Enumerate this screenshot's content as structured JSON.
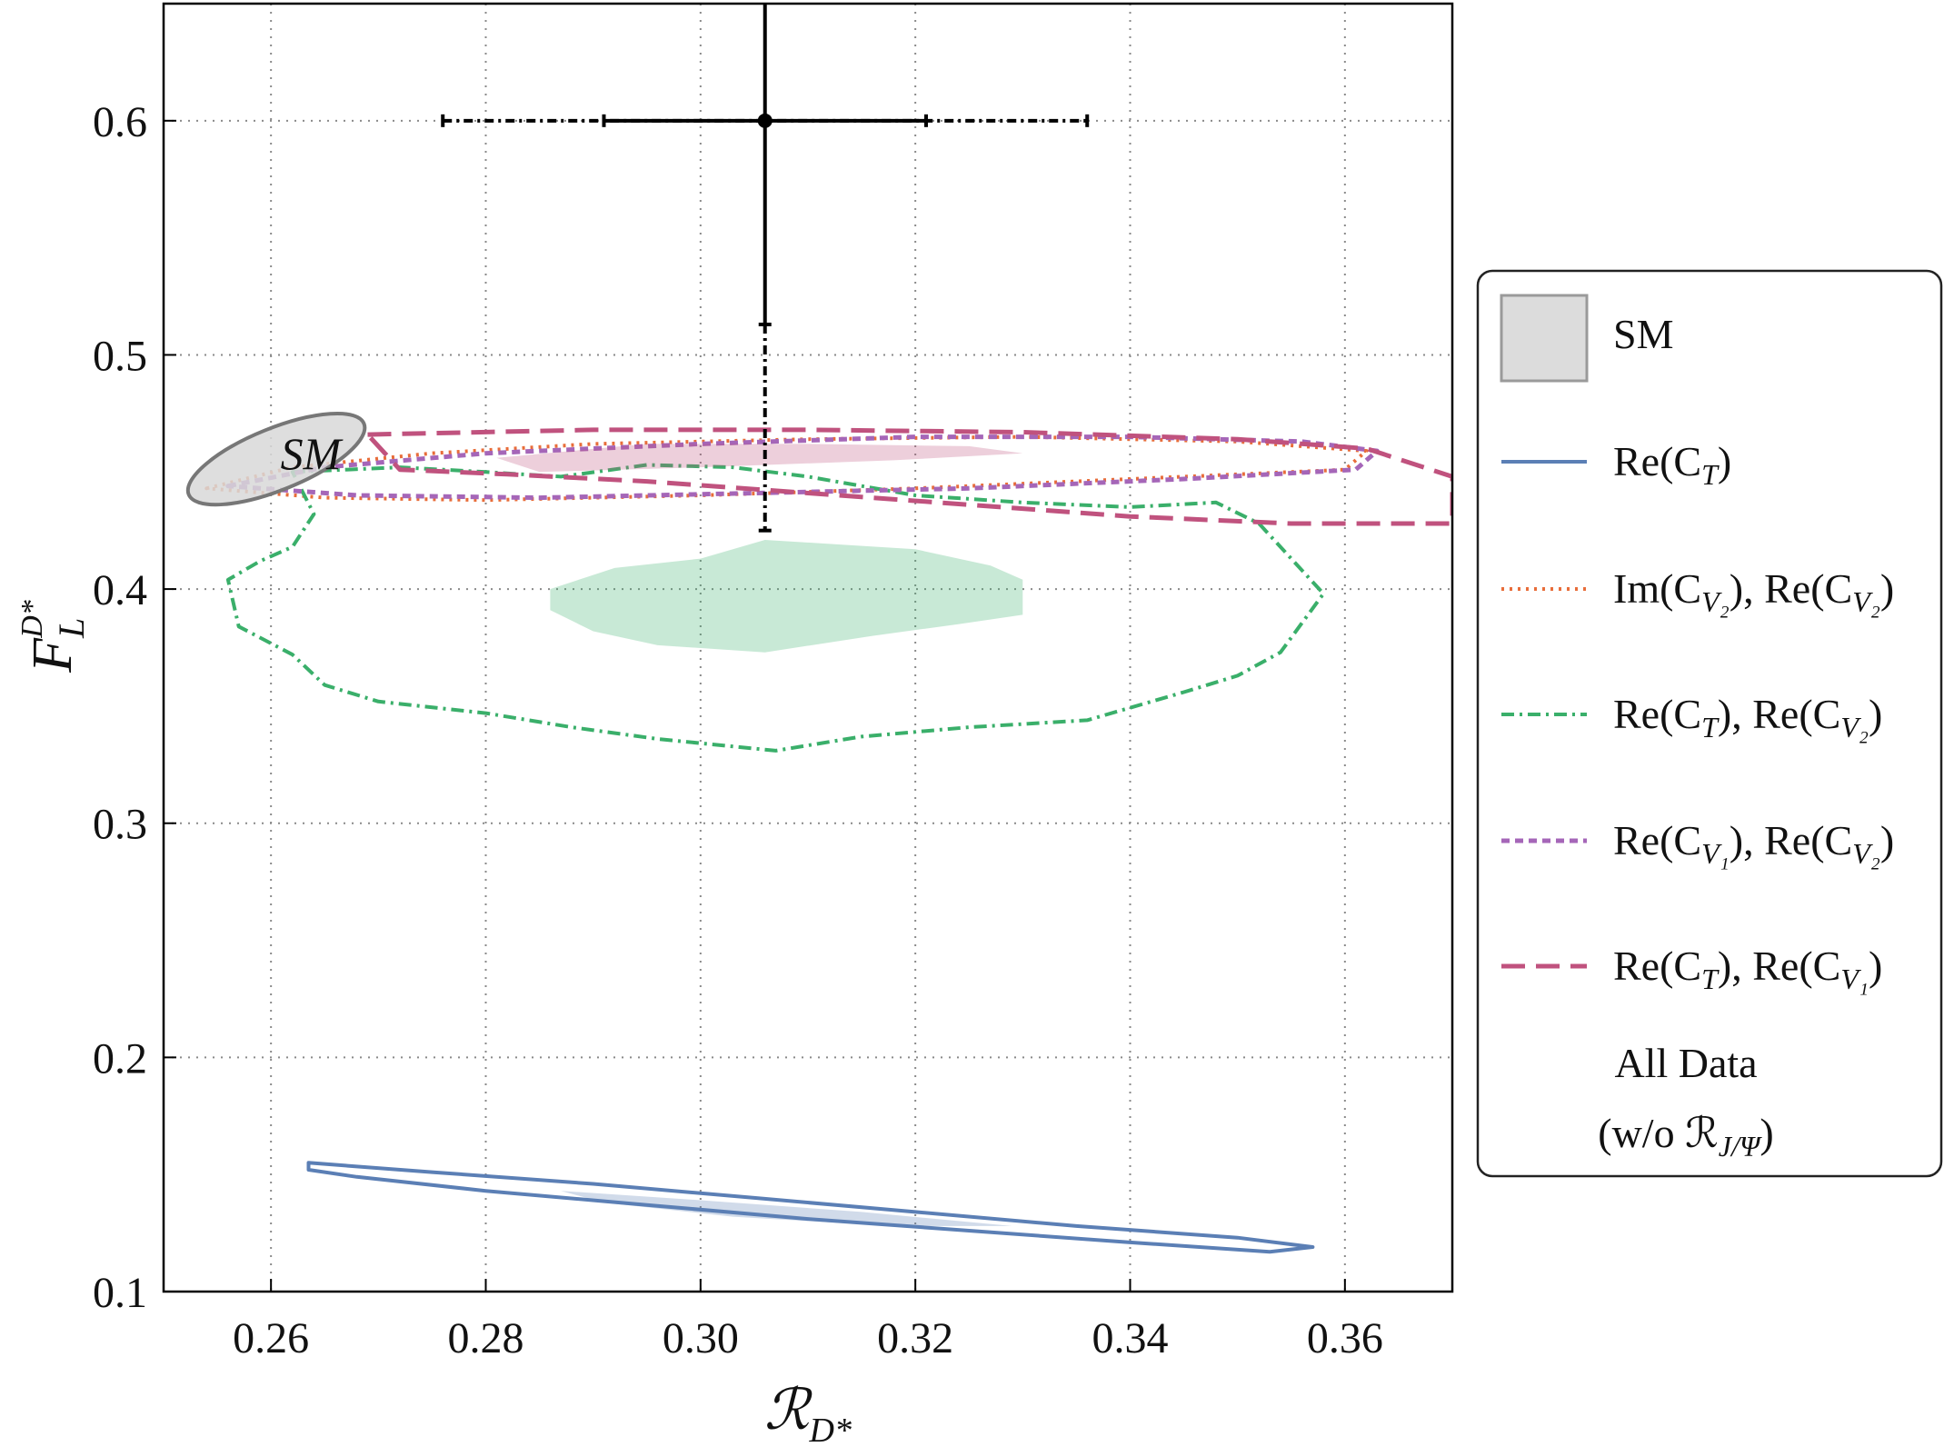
{
  "chart_data": {
    "type": "scatter",
    "xlabel": "ℛ",
    "xlabel_sub": "D*",
    "ylabel": "F",
    "ylabel_sub": "L",
    "ylabel_sup": "D*",
    "xlim": [
      0.25,
      0.37
    ],
    "ylim": [
      0.1,
      0.65
    ],
    "xticks": [
      0.26,
      0.28,
      0.3,
      0.32,
      0.34,
      0.36
    ],
    "xtick_labels": [
      "0.26",
      "0.28",
      "0.30",
      "0.32",
      "0.34",
      "0.36"
    ],
    "yticks": [
      0.1,
      0.2,
      0.3,
      0.4,
      0.5,
      0.6
    ],
    "ytick_labels": [
      "0.1",
      "0.2",
      "0.3",
      "0.4",
      "0.5",
      "0.6"
    ],
    "grid": true,
    "measurement": {
      "x": 0.306,
      "y": 0.6,
      "x_err_inner": [
        0.291,
        0.321
      ],
      "x_err_outer": [
        0.276,
        0.336
      ],
      "y_err_inner_low": 0.513,
      "y_err_outer_low": 0.425,
      "y_err_high": 0.65
    },
    "sm_ellipse": {
      "x": 0.2605,
      "y": 0.4555,
      "rx": 0.0095,
      "ry": 0.0095,
      "label": "SM"
    },
    "regions": [
      {
        "name": "Re(C_T)",
        "color": "#5b7fb5",
        "style": "solid",
        "outline": [
          [
            0.2635,
            0.155
          ],
          [
            0.275,
            0.151
          ],
          [
            0.29,
            0.146
          ],
          [
            0.305,
            0.14
          ],
          [
            0.32,
            0.134
          ],
          [
            0.335,
            0.128
          ],
          [
            0.35,
            0.123
          ],
          [
            0.357,
            0.119
          ],
          [
            0.353,
            0.117
          ],
          [
            0.34,
            0.121
          ],
          [
            0.325,
            0.126
          ],
          [
            0.31,
            0.131
          ],
          [
            0.295,
            0.137
          ],
          [
            0.28,
            0.143
          ],
          [
            0.268,
            0.149
          ],
          [
            0.2635,
            0.152
          ]
        ],
        "fill": [
          [
            0.287,
            0.143
          ],
          [
            0.3,
            0.139
          ],
          [
            0.315,
            0.134
          ],
          [
            0.329,
            0.128
          ],
          [
            0.318,
            0.128
          ],
          [
            0.303,
            0.132
          ],
          [
            0.291,
            0.138
          ]
        ]
      },
      {
        "name": "Im(C_V2), Re(C_V2)",
        "color": "#e86d3a",
        "style": "dotted",
        "outline": [
          [
            0.254,
            0.443
          ],
          [
            0.262,
            0.452
          ],
          [
            0.275,
            0.458
          ],
          [
            0.29,
            0.462
          ],
          [
            0.31,
            0.464
          ],
          [
            0.33,
            0.465
          ],
          [
            0.35,
            0.463
          ],
          [
            0.362,
            0.459
          ],
          [
            0.36,
            0.451
          ],
          [
            0.34,
            0.447
          ],
          [
            0.32,
            0.443
          ],
          [
            0.3,
            0.44
          ],
          [
            0.28,
            0.438
          ],
          [
            0.265,
            0.439
          ]
        ]
      },
      {
        "name": "Re(C_T), Re(C_V2)",
        "color": "#3aaf6a",
        "style": "dashdot",
        "outline": [
          [
            0.262,
            0.45
          ],
          [
            0.272,
            0.452
          ],
          [
            0.28,
            0.45
          ],
          [
            0.287,
            0.448
          ],
          [
            0.295,
            0.453
          ],
          [
            0.303,
            0.452
          ],
          [
            0.31,
            0.448
          ],
          [
            0.32,
            0.44
          ],
          [
            0.33,
            0.437
          ],
          [
            0.34,
            0.435
          ],
          [
            0.348,
            0.437
          ],
          [
            0.352,
            0.428
          ],
          [
            0.358,
            0.398
          ],
          [
            0.354,
            0.373
          ],
          [
            0.35,
            0.363
          ],
          [
            0.345,
            0.356
          ],
          [
            0.336,
            0.344
          ],
          [
            0.325,
            0.341
          ],
          [
            0.315,
            0.337
          ],
          [
            0.307,
            0.331
          ],
          [
            0.296,
            0.336
          ],
          [
            0.288,
            0.341
          ],
          [
            0.28,
            0.347
          ],
          [
            0.27,
            0.352
          ],
          [
            0.265,
            0.359
          ],
          [
            0.262,
            0.372
          ],
          [
            0.257,
            0.384
          ],
          [
            0.256,
            0.404
          ],
          [
            0.259,
            0.412
          ],
          [
            0.262,
            0.418
          ],
          [
            0.264,
            0.432
          ]
        ],
        "fill": [
          [
            0.286,
            0.4
          ],
          [
            0.292,
            0.409
          ],
          [
            0.3,
            0.413
          ],
          [
            0.306,
            0.421
          ],
          [
            0.313,
            0.419
          ],
          [
            0.32,
            0.417
          ],
          [
            0.327,
            0.41
          ],
          [
            0.33,
            0.404
          ],
          [
            0.33,
            0.389
          ],
          [
            0.324,
            0.385
          ],
          [
            0.316,
            0.38
          ],
          [
            0.306,
            0.373
          ],
          [
            0.296,
            0.376
          ],
          [
            0.29,
            0.382
          ],
          [
            0.286,
            0.391
          ]
        ]
      },
      {
        "name": "Re(C_V1), Re(C_V2)",
        "color": "#a566b8",
        "style": "dashed",
        "outline": [
          [
            0.256,
            0.444
          ],
          [
            0.265,
            0.452
          ],
          [
            0.28,
            0.458
          ],
          [
            0.3,
            0.462
          ],
          [
            0.32,
            0.465
          ],
          [
            0.34,
            0.465
          ],
          [
            0.356,
            0.463
          ],
          [
            0.363,
            0.459
          ],
          [
            0.361,
            0.451
          ],
          [
            0.345,
            0.447
          ],
          [
            0.325,
            0.443
          ],
          [
            0.305,
            0.441
          ],
          [
            0.285,
            0.439
          ],
          [
            0.268,
            0.44
          ]
        ]
      },
      {
        "name": "Re(C_T), Re(C_V1)",
        "color": "#c0527e",
        "style": "longdash",
        "outline": [
          [
            0.269,
            0.466
          ],
          [
            0.29,
            0.468
          ],
          [
            0.31,
            0.468
          ],
          [
            0.33,
            0.467
          ],
          [
            0.35,
            0.464
          ],
          [
            0.362,
            0.46
          ],
          [
            0.37,
            0.448
          ],
          [
            0.37,
            0.428
          ],
          [
            0.355,
            0.428
          ],
          [
            0.34,
            0.431
          ],
          [
            0.325,
            0.436
          ],
          [
            0.31,
            0.441
          ],
          [
            0.295,
            0.446
          ],
          [
            0.282,
            0.449
          ],
          [
            0.272,
            0.451
          ]
        ],
        "fill": [
          [
            0.281,
            0.456
          ],
          [
            0.295,
            0.462
          ],
          [
            0.31,
            0.462
          ],
          [
            0.325,
            0.461
          ],
          [
            0.33,
            0.458
          ],
          [
            0.318,
            0.455
          ],
          [
            0.3,
            0.452
          ],
          [
            0.285,
            0.45
          ]
        ]
      }
    ]
  },
  "sm_label": "SM",
  "legend": {
    "items": [
      {
        "label": "SM",
        "color": "#cfcfcf"
      },
      {
        "label": "Re(C",
        "sub": "T",
        "tail": ")",
        "color": "#5b7fb5"
      },
      {
        "label": "Im(C",
        "sub": "V₂",
        "mid": "), Re(C",
        "sub2": "V₂",
        "tail": ")",
        "color": "#e86d3a"
      },
      {
        "label": "Re(C",
        "sub": "T",
        "mid": "), Re(C",
        "sub2": "V₂",
        "tail": ")",
        "color": "#3aaf6a"
      },
      {
        "label": "Re(C",
        "sub": "V₁",
        "mid": "), Re(C",
        "sub2": "V₂",
        "tail": ")",
        "color": "#a566b8"
      },
      {
        "label": "Re(C",
        "sub": "T",
        "mid": "), Re(C",
        "sub2": "V₁",
        "tail": ")",
        "color": "#c0527e"
      }
    ],
    "footer_line1": "All Data",
    "footer_line2_pre": "(w/o ℛ",
    "footer_line2_sub": "J/Ψ",
    "footer_line2_post": ")"
  }
}
